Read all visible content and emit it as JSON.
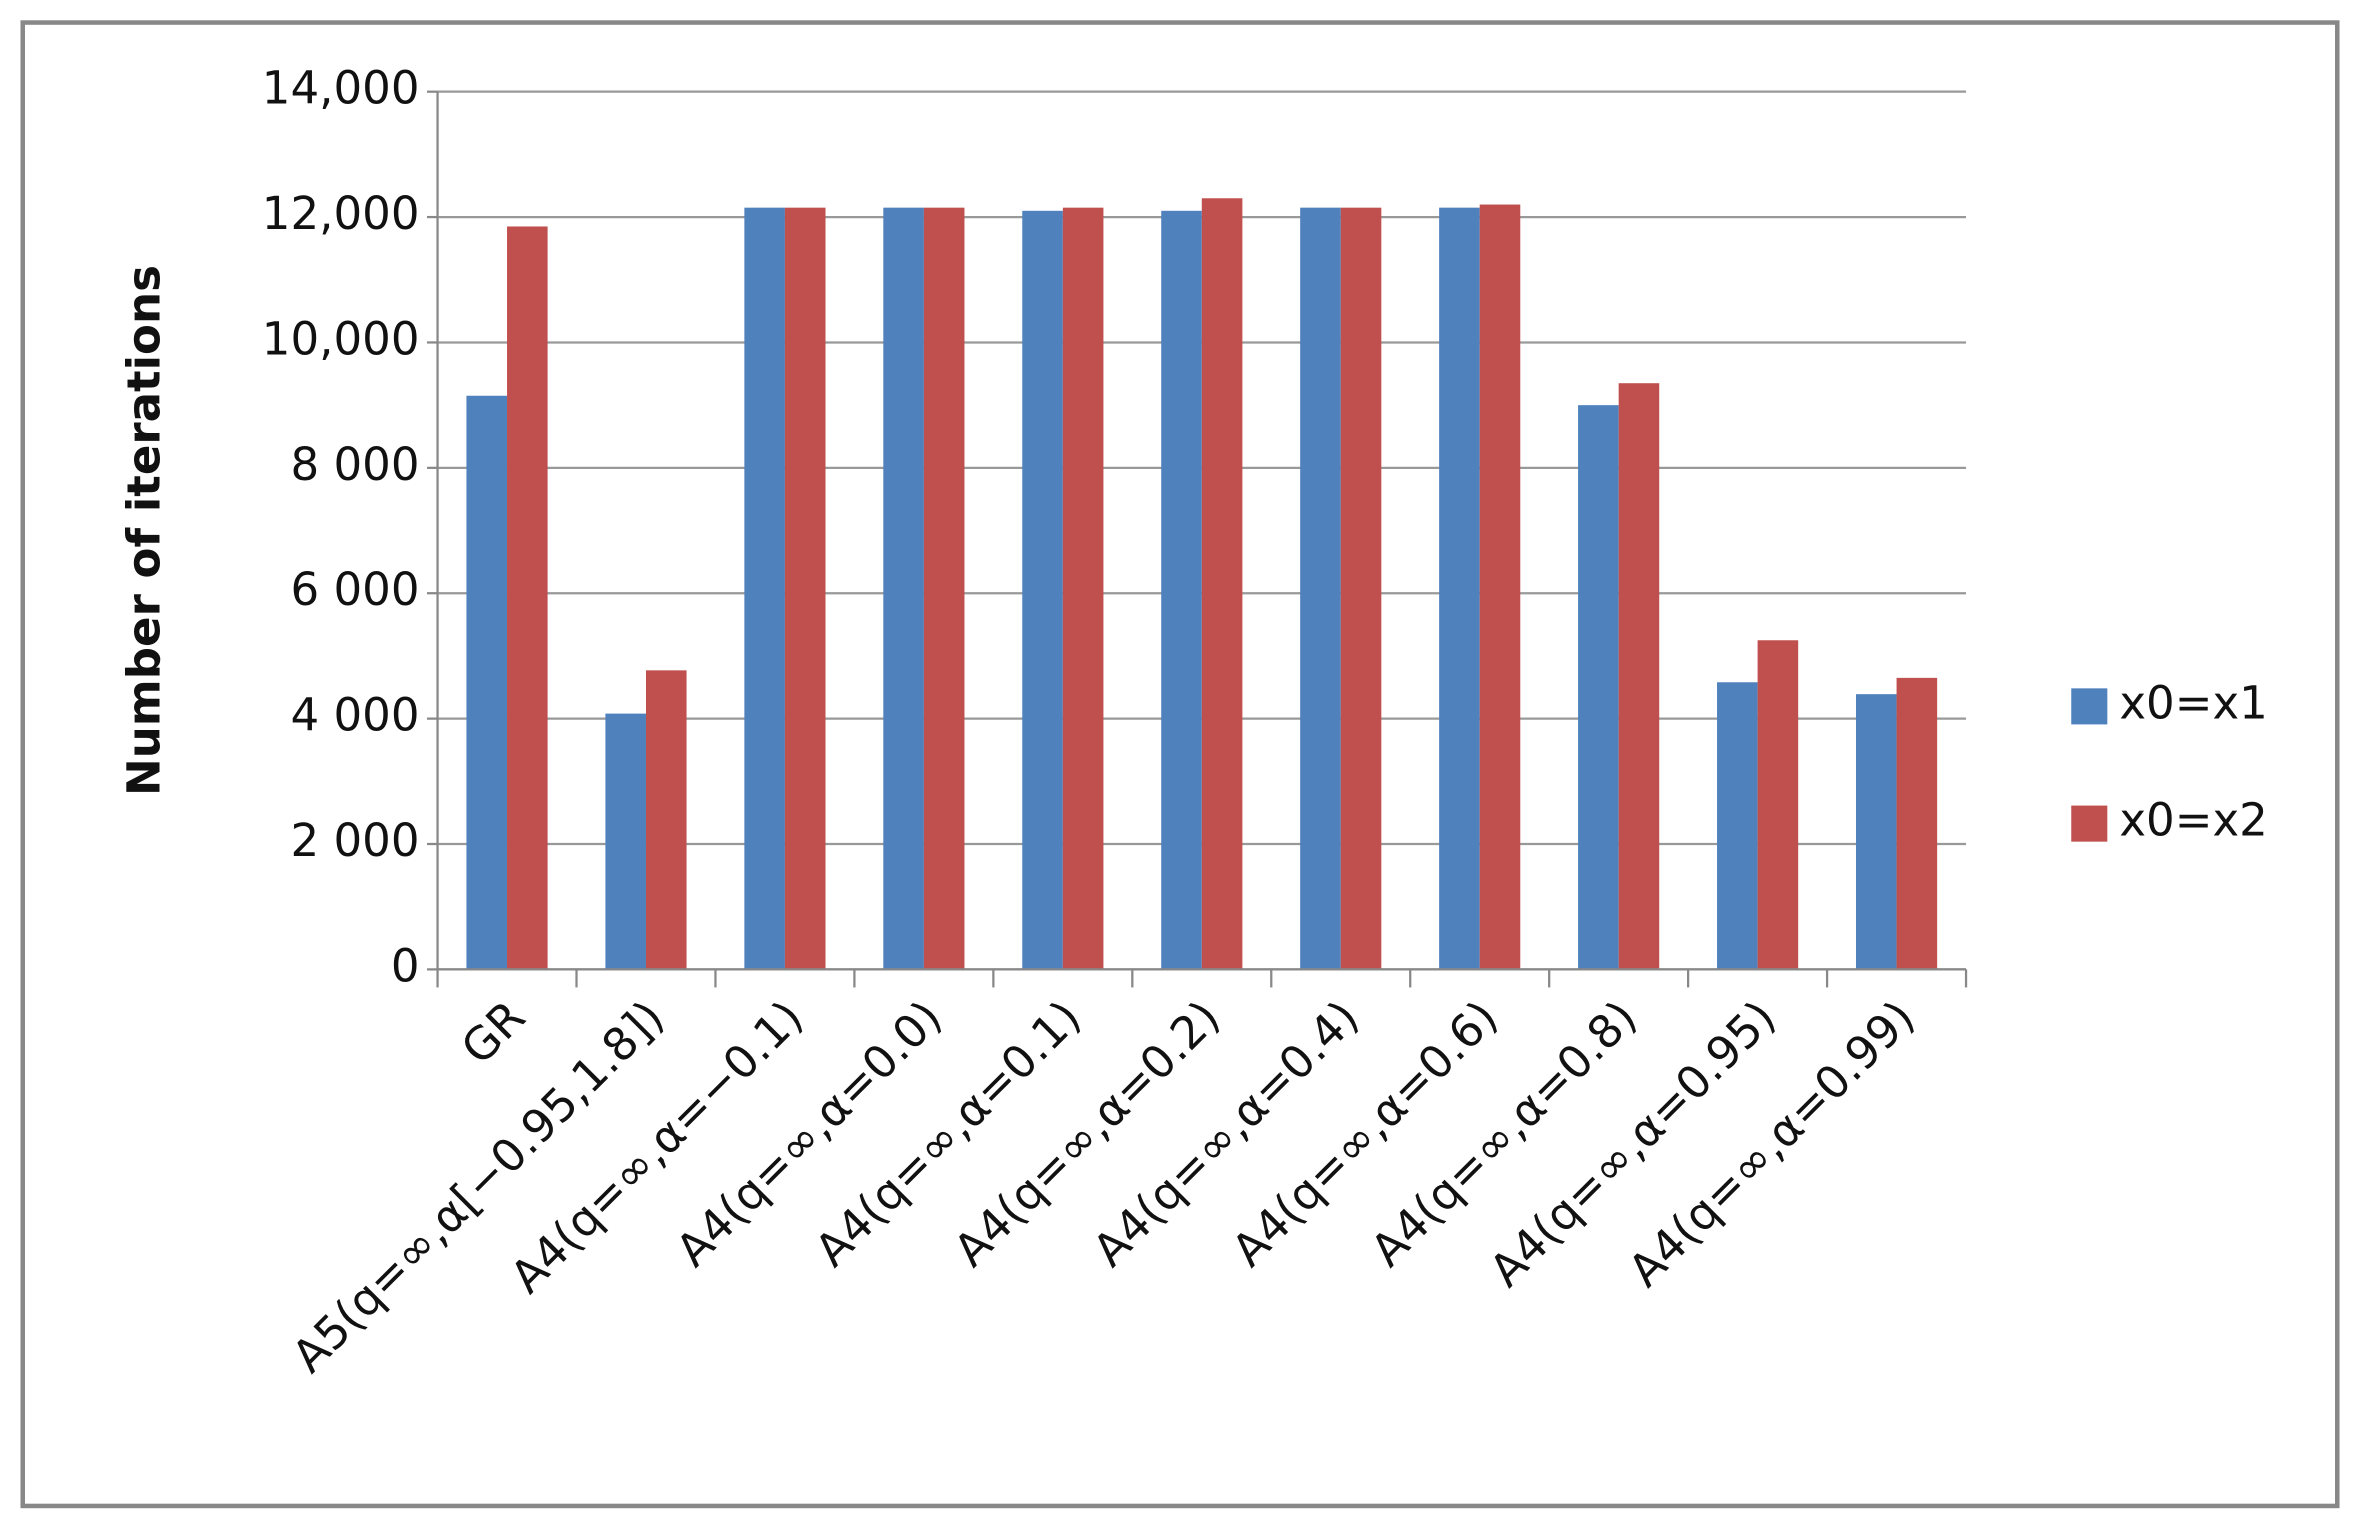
{
  "chart_data": {
    "type": "bar",
    "y_label": "Number of iterations",
    "categories": [
      "GR",
      "A5(q=∞,α[−0.95,1.8])",
      "A4(q=∞,α=−0.1)",
      "A4(q=∞,α=0.0)",
      "A4(q=∞,α=0.1)",
      "A4(q=∞,α=0.2)",
      "A4(q=∞,α=0.4)",
      "A4(q=∞,α=0.6)",
      "A4(q=∞,α=0.8)",
      "A4(q=∞,α=0.95)",
      "A4(q=∞,α=0.99)"
    ],
    "series": [
      {
        "name": "x0=x1",
        "color": "#4f81bd",
        "values": [
          9150,
          4080,
          12150,
          12150,
          12100,
          12100,
          12150,
          12150,
          9000,
          4580,
          4390
        ]
      },
      {
        "name": "x0=x2",
        "color": "#c0504d",
        "values": [
          11850,
          4770,
          12150,
          12150,
          12150,
          12300,
          12150,
          12200,
          9350,
          5250,
          4650
        ]
      }
    ],
    "ylim": [
      0,
      14000
    ],
    "yticks": [
      0,
      {
        "value": 2000,
        "label": "2 000"
      },
      {
        "value": 4000,
        "label": "4 000"
      },
      {
        "value": 6000,
        "label": "6 000"
      },
      {
        "value": 8000,
        "label": "8 000"
      },
      {
        "value": 10000,
        "label": "10,000"
      },
      {
        "value": 12000,
        "label": "12,000"
      },
      {
        "value": 14000,
        "label": "14,000"
      }
    ],
    "grid": true,
    "legend": "right"
  }
}
